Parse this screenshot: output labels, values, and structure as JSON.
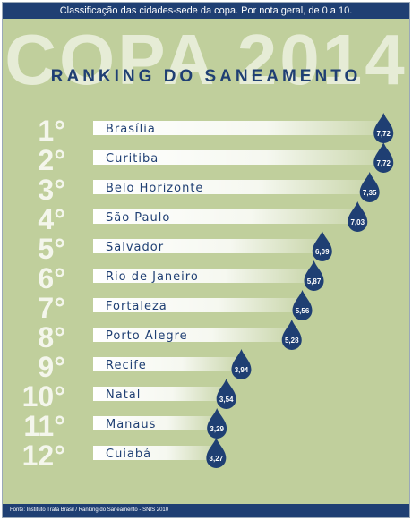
{
  "header": {
    "caption": "Classificação das cidades-sede da copa. Por nota geral, de 0 a 10.",
    "background_title": "COPA 2014",
    "subtitle": "RANKING DO SANEAMENTO"
  },
  "footer": {
    "source": "Fonte: Instituto Trata Brasil / Ranking do Saneamento - SNIS 2010"
  },
  "colors": {
    "background": "#c0cf9c",
    "header_bar": "#1f3f73",
    "rank_text": "#f4f6ec",
    "bar_fill": "#ffffff",
    "drop": "#1f3f73",
    "city_text": "#1f3f73"
  },
  "chart_data": {
    "type": "bar",
    "orientation": "horizontal",
    "title": "RANKING DO SANEAMENTO",
    "xlim": [
      0,
      10
    ],
    "ranks": [
      "1°",
      "2°",
      "3°",
      "4°",
      "5°",
      "6°",
      "7°",
      "8°",
      "9°",
      "10°",
      "11°",
      "12°"
    ],
    "categories": [
      "Brasília",
      "Curitiba",
      "Belo Horizonte",
      "São Paulo",
      "Salvador",
      "Rio de Janeiro",
      "Fortaleza",
      "Porto Alegre",
      "Recife",
      "Natal",
      "Manaus",
      "Cuiabá"
    ],
    "values": [
      7.72,
      7.72,
      7.35,
      7.03,
      6.09,
      5.87,
      5.56,
      5.28,
      3.94,
      3.54,
      3.29,
      3.27
    ],
    "value_labels": [
      "7,72",
      "7,72",
      "7,35",
      "7,03",
      "6,09",
      "5,87",
      "5,56",
      "5,28",
      "3,94",
      "3,54",
      "3,29",
      "3,27"
    ]
  }
}
